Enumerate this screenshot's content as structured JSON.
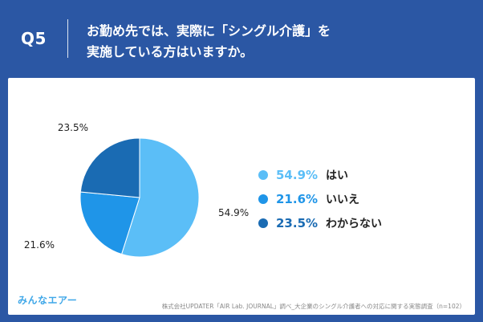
{
  "header": {
    "q_number": "Q5",
    "question_line1": "お勤め先では、実際に「シングル介護」を",
    "question_line2": "実施している方はいますか。"
  },
  "chart_data": {
    "type": "pie",
    "labels": [
      "はい",
      "いいえ",
      "わからない"
    ],
    "values": [
      54.9,
      21.6,
      23.5
    ],
    "value_labels": [
      "54.9%",
      "21.6%",
      "23.5%"
    ],
    "colors": [
      "#5bbef7",
      "#1f95e8",
      "#1a6bb3"
    ]
  },
  "legend": [
    {
      "value": "54.9%",
      "label": "はい",
      "color": "#5bbef7"
    },
    {
      "value": "21.6%",
      "label": "いいえ",
      "color": "#1f95e8"
    },
    {
      "value": "23.5%",
      "label": "わからない",
      "color": "#1a6bb3"
    }
  ],
  "footer": {
    "logo_text": "みんなエアー",
    "source": "株式会社UPDATER「AIR Lab. JOURNAL」調べ_大企業のシングル介護者への対応に関する実態調査（n=102）"
  }
}
